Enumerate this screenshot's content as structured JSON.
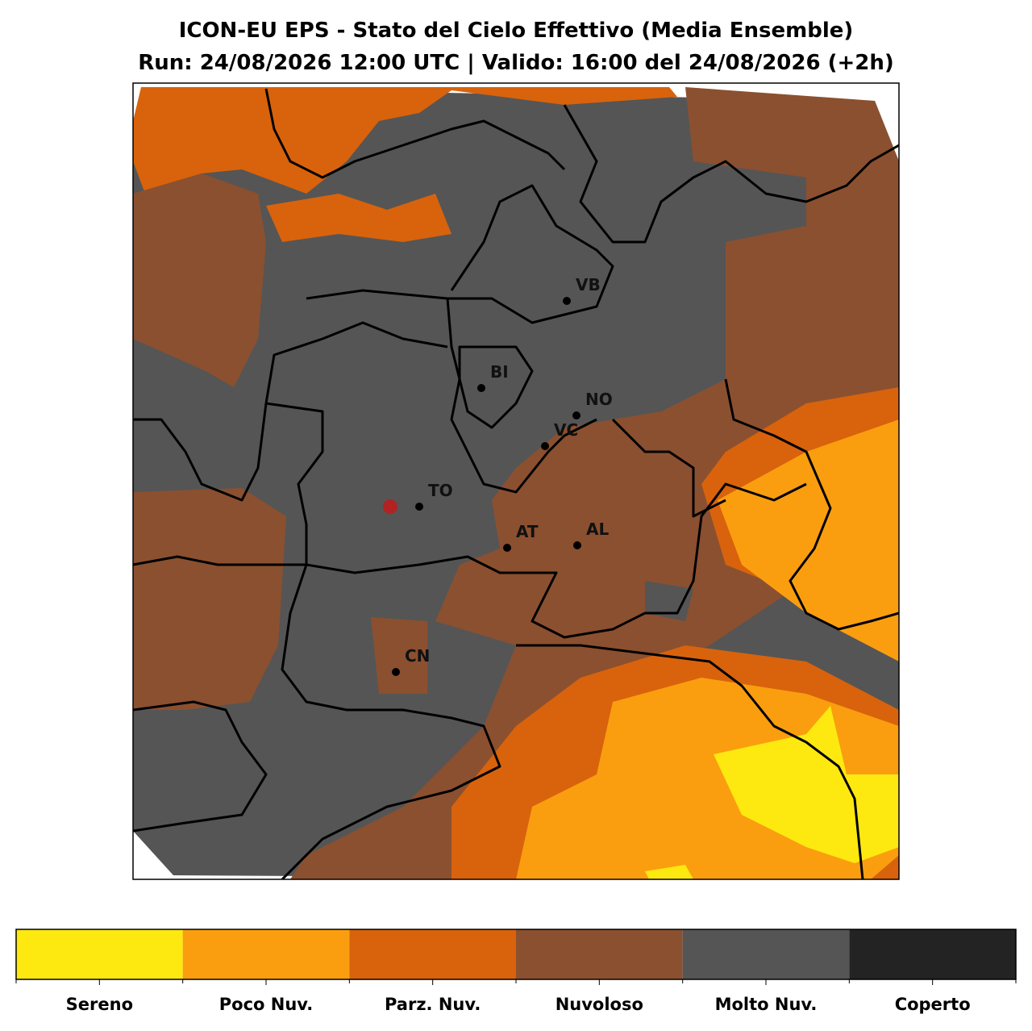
{
  "header": {
    "title": "ICON-EU EPS - Stato del Cielo Effettivo (Media Ensemble)",
    "subtitle": "Run: 24/08/2026 12:00 UTC | Valido: 16:00 del 24/08/2026 (+2h)"
  },
  "cities": [
    "VB",
    "BI",
    "NO",
    "VC",
    "TO",
    "AT",
    "AL",
    "CN"
  ],
  "legend": {
    "items": [
      {
        "label": "Sereno",
        "color": "#fde910"
      },
      {
        "label": "Poco Nuv.",
        "color": "#fa9e0f"
      },
      {
        "label": "Parz. Nuv.",
        "color": "#d8630c"
      },
      {
        "label": "Nuvoloso",
        "color": "#8b5030"
      },
      {
        "label": "Molto Nuv.",
        "color": "#555555"
      },
      {
        "label": "Coperto",
        "color": "#232323"
      }
    ]
  }
}
